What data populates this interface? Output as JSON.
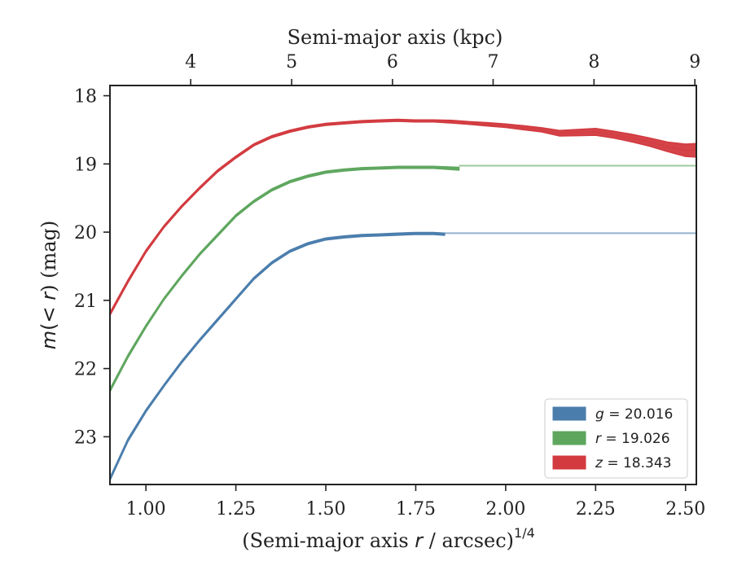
{
  "chart_data": {
    "type": "line",
    "xlabel_bottom": "(Semi-major axis r / arcsec)^{1/4}",
    "xlabel_bottom_prefix": "(Semi-major axis ",
    "xlabel_bottom_var": "r",
    "xlabel_bottom_suffix": " / arcsec)",
    "xlabel_bottom_exp": "1/4",
    "xlabel_top": "Semi-major axis (kpc)",
    "ylabel": "m(< r) (mag)",
    "ylabel_var": "m",
    "ylabel_mid": "(< ",
    "ylabel_var2": "r",
    "ylabel_suffix": ") (mag)",
    "xlim": [
      0.9,
      2.53
    ],
    "ylim": [
      23.7,
      17.85
    ],
    "y_inverted": true,
    "xticks": [
      1.0,
      1.25,
      1.5,
      1.75,
      2.0,
      2.25,
      2.5
    ],
    "xtick_labels": [
      "1.00",
      "1.25",
      "1.50",
      "1.75",
      "2.00",
      "2.25",
      "2.50"
    ],
    "yticks": [
      18,
      19,
      20,
      21,
      22,
      23
    ],
    "ytick_labels": [
      "18",
      "19",
      "20",
      "21",
      "22",
      "23"
    ],
    "top_ticks_kpc": [
      4,
      5,
      6,
      7,
      8,
      9
    ],
    "top_tick_labels": [
      "4",
      "5",
      "6",
      "7",
      "8",
      "9"
    ],
    "top_tick_positions_x": [
      1.1245,
      1.4051,
      1.6854,
      1.9651,
      2.2455,
      2.5259
    ],
    "legend_position": "lower-right",
    "grid": false,
    "series": [
      {
        "name": "g = 20.016",
        "legend_var": "g",
        "legend_value": "20.016",
        "color": "#4a7dac",
        "total": 20.016,
        "x": [
          0.9,
          0.95,
          1.0,
          1.05,
          1.1,
          1.15,
          1.2,
          1.25,
          1.3,
          1.35,
          1.4,
          1.45,
          1.5,
          1.55,
          1.6,
          1.65,
          1.7,
          1.75,
          1.8,
          1.83
        ],
        "y": [
          23.62,
          23.05,
          22.62,
          22.25,
          21.9,
          21.58,
          21.28,
          20.98,
          20.68,
          20.45,
          20.28,
          20.17,
          20.1,
          20.07,
          20.05,
          20.04,
          20.03,
          20.02,
          20.02,
          20.03
        ],
        "width": [
          0.04,
          0.04,
          0.035,
          0.03,
          0.03,
          0.03,
          0.03,
          0.03,
          0.03,
          0.03,
          0.03,
          0.03,
          0.03,
          0.03,
          0.03,
          0.03,
          0.03,
          0.03,
          0.03,
          0.03
        ]
      },
      {
        "name": "r = 19.026",
        "legend_var": "r",
        "legend_value": "19.026",
        "color": "#5ea65e",
        "total": 19.026,
        "x": [
          0.9,
          0.95,
          1.0,
          1.05,
          1.1,
          1.15,
          1.2,
          1.25,
          1.3,
          1.35,
          1.4,
          1.45,
          1.5,
          1.55,
          1.6,
          1.65,
          1.7,
          1.75,
          1.8,
          1.87
        ],
        "y": [
          22.32,
          21.82,
          21.38,
          20.98,
          20.64,
          20.32,
          20.04,
          19.76,
          19.55,
          19.38,
          19.26,
          19.18,
          19.12,
          19.09,
          19.07,
          19.06,
          19.05,
          19.05,
          19.05,
          19.07
        ],
        "width": [
          0.04,
          0.04,
          0.035,
          0.03,
          0.03,
          0.03,
          0.03,
          0.03,
          0.03,
          0.03,
          0.03,
          0.03,
          0.03,
          0.03,
          0.03,
          0.03,
          0.03,
          0.03,
          0.03,
          0.04
        ]
      },
      {
        "name": "z = 18.343",
        "legend_var": "z",
        "legend_value": "18.343",
        "color": "#d23a3f",
        "total": 18.343,
        "x": [
          0.9,
          0.95,
          1.0,
          1.05,
          1.1,
          1.15,
          1.2,
          1.25,
          1.3,
          1.35,
          1.4,
          1.45,
          1.5,
          1.55,
          1.6,
          1.65,
          1.7,
          1.75,
          1.8,
          1.85,
          1.9,
          1.95,
          2.0,
          2.05,
          2.1,
          2.15,
          2.2,
          2.25,
          2.3,
          2.35,
          2.4,
          2.45,
          2.5,
          2.53
        ],
        "y": [
          21.2,
          20.72,
          20.28,
          19.92,
          19.62,
          19.35,
          19.1,
          18.9,
          18.72,
          18.6,
          18.52,
          18.46,
          18.42,
          18.4,
          18.38,
          18.37,
          18.36,
          18.37,
          18.37,
          18.38,
          18.4,
          18.42,
          18.44,
          18.47,
          18.5,
          18.55,
          18.54,
          18.53,
          18.57,
          18.62,
          18.68,
          18.75,
          18.8,
          18.8
        ],
        "width": [
          0.04,
          0.04,
          0.035,
          0.03,
          0.03,
          0.03,
          0.03,
          0.03,
          0.03,
          0.03,
          0.03,
          0.03,
          0.03,
          0.03,
          0.03,
          0.03,
          0.03,
          0.03,
          0.03,
          0.04,
          0.04,
          0.05,
          0.05,
          0.06,
          0.06,
          0.08,
          0.09,
          0.1,
          0.1,
          0.11,
          0.12,
          0.14,
          0.18,
          0.2
        ]
      }
    ]
  }
}
